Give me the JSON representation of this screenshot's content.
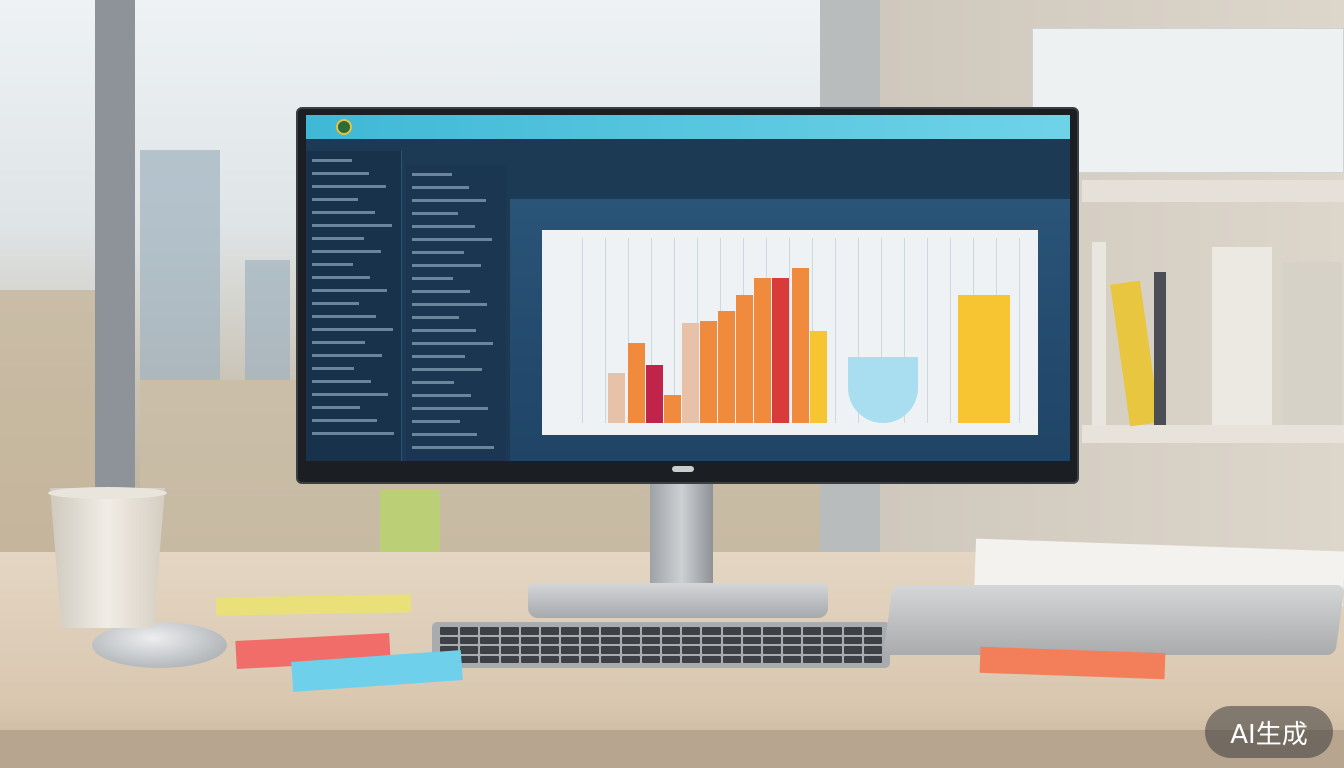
{
  "watermark": {
    "text": "AI生成"
  },
  "colors": {
    "screen_background": "#1d3a55",
    "header_bar": "#3fb8d6",
    "chart_background": "#eef2f4",
    "bar_orange": "#f08a3c",
    "bar_red": "#d93a3a",
    "bar_crimson": "#c0244a",
    "bar_peach": "#e8c2a8",
    "bar_yellow": "#f7c531",
    "shape_light_blue": "#a9def0",
    "desk": "#e4d6c3"
  }
}
